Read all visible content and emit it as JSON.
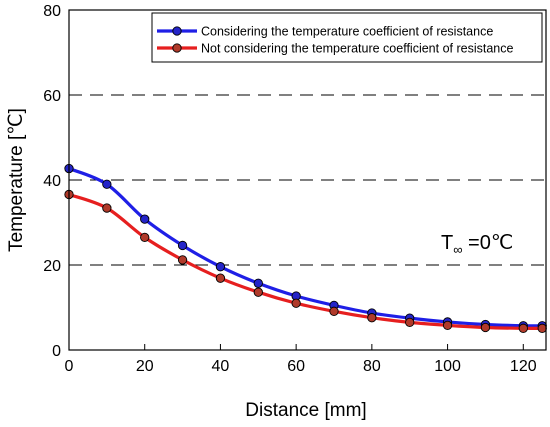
{
  "chart_data": {
    "type": "line",
    "xlabel": "Distance [mm]",
    "ylabel": "Temperature [℃]",
    "xlim": [
      0,
      126
    ],
    "ylim": [
      0,
      80
    ],
    "xticks": [
      "0",
      "20",
      "40",
      "60",
      "80",
      "100",
      "120"
    ],
    "yticks": [
      "0",
      "20",
      "40",
      "60",
      "80"
    ],
    "grid": "horizontal dashed",
    "legend_position": "top-right",
    "annotation": {
      "main": "T",
      "sub": "∞",
      "rest": " =0℃"
    },
    "x": [
      0,
      10,
      20,
      30,
      40,
      50,
      60,
      70,
      80,
      90,
      100,
      110,
      120,
      125
    ],
    "series": [
      {
        "name": "Considering the temperature coefficient of resistance",
        "color": "#1f1fe6",
        "marker": "#2424c8",
        "values": [
          42.7,
          39.0,
          30.8,
          24.6,
          19.6,
          15.7,
          12.7,
          10.5,
          8.7,
          7.5,
          6.6,
          6.0,
          5.7,
          5.7
        ]
      },
      {
        "name": "Not considering the temperature coefficient of resistance",
        "color": "#e61f1f",
        "marker": "#b03a2a",
        "values": [
          36.6,
          33.4,
          26.5,
          21.2,
          16.9,
          13.6,
          11.0,
          9.1,
          7.6,
          6.5,
          5.8,
          5.3,
          5.1,
          5.1
        ]
      }
    ]
  }
}
